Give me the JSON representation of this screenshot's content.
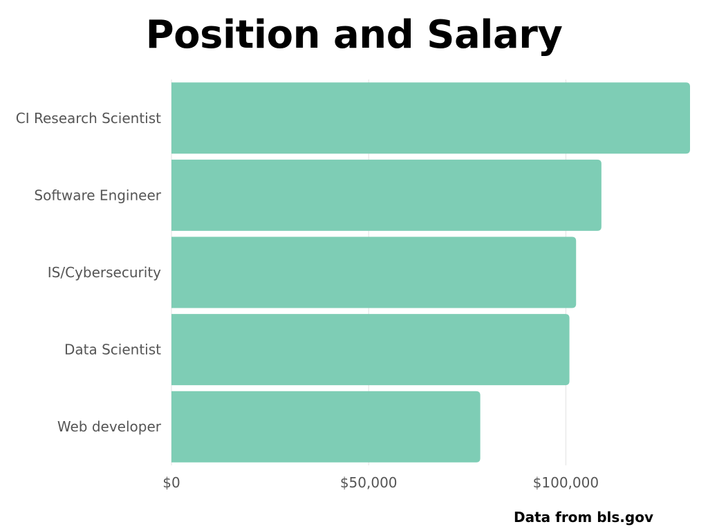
{
  "chart_data": {
    "type": "bar",
    "orientation": "horizontal",
    "title": "Position and Salary",
    "categories": [
      "CI Research Scientist",
      "Software Engineer",
      "IS/Cybersecurity",
      "Data Scientist",
      "Web developer"
    ],
    "values": [
      131490,
      109020,
      102600,
      100910,
      78300
    ],
    "xlim": [
      0,
      131490
    ],
    "xticks": [
      0,
      50000,
      100000
    ],
    "xtick_labels": [
      "$0",
      "$50,000",
      "$100,000"
    ],
    "grid": true,
    "bar_color": "#7ecdb5",
    "grid_color": "#e2e2e2",
    "source_note": "Data from bls.gov"
  }
}
